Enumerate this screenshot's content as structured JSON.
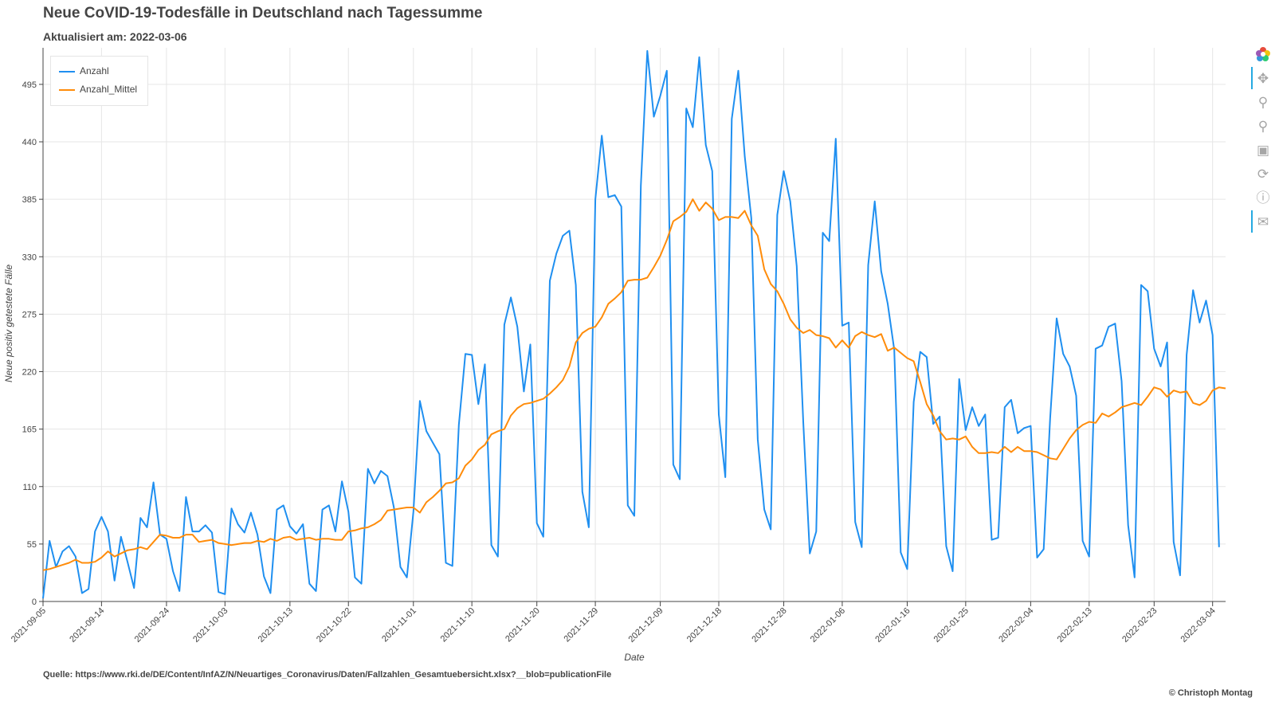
{
  "header": {
    "title": "Neue CoVID-19-Todesfälle in Deutschland nach Tagessumme",
    "subtitle": "Aktualisiert am: 2022-03-06"
  },
  "footer": {
    "source": "Quelle: https://www.rki.de/DE/Content/InfAZ/N/Neuartiges_Coronavirus/Daten/Fallzahlen_Gesamtuebersicht.xlsx?__blob=publicationFile",
    "copyright": "© Christoph Montag"
  },
  "toolbar": {
    "tools": [
      "bokeh-logo-icon",
      "pan-icon",
      "box-zoom-icon",
      "wheel-zoom-icon",
      "save-icon",
      "reset-icon",
      "help-icon",
      "hover-icon"
    ]
  },
  "colors": {
    "anzahl": "#1f8ff0",
    "mittel": "#ff8c0a",
    "grid": "#e6e6e6",
    "axis": "#444444"
  },
  "chart_data": {
    "type": "line",
    "xlabel": "Date",
    "ylabel": "Neue positiv getestete Fälle",
    "x_start": "2021-09-05",
    "x_end": "2022-03-05",
    "xlim": [
      "2021-09-05",
      "2022-03-06"
    ],
    "ylim": [
      0,
      530
    ],
    "yticks": [
      0,
      55,
      110,
      165,
      220,
      275,
      330,
      385,
      440,
      495
    ],
    "xticks": [
      "2021-09-05",
      "2021-09-14",
      "2021-09-24",
      "2021-10-03",
      "2021-10-13",
      "2021-10-22",
      "2021-11-01",
      "2021-11-10",
      "2021-11-20",
      "2021-11-29",
      "2021-12-09",
      "2021-12-18",
      "2021-12-28",
      "2022-01-06",
      "2022-01-16",
      "2022-01-25",
      "2022-02-04",
      "2022-02-13",
      "2022-02-23",
      "2022-03-04"
    ],
    "grid": true,
    "legend": "top-left",
    "series": [
      {
        "name": "Anzahl",
        "values": [
          3,
          58,
          33,
          48,
          53,
          43,
          8,
          12,
          67,
          81,
          67,
          20,
          62,
          38,
          13,
          80,
          71,
          114,
          64,
          60,
          29,
          10,
          100,
          67,
          67,
          73,
          66,
          9,
          7,
          89,
          74,
          66,
          85,
          64,
          24,
          8,
          88,
          92,
          72,
          65,
          74,
          17,
          10,
          88,
          92,
          67,
          115,
          86,
          23,
          17,
          127,
          113,
          125,
          120,
          90,
          33,
          23,
          86,
          192,
          163,
          152,
          141,
          37,
          34,
          169,
          237,
          236,
          189,
          227,
          54,
          43,
          265,
          291,
          263,
          201,
          246,
          75,
          62,
          307,
          333,
          350,
          355,
          303,
          105,
          71,
          385,
          446,
          387,
          389,
          378,
          92,
          82,
          398,
          527,
          464,
          484,
          508,
          131,
          117,
          472,
          454,
          521,
          437,
          412,
          179,
          119,
          462,
          508,
          426,
          367,
          155,
          88,
          69,
          370,
          412,
          383,
          321,
          172,
          46,
          67,
          353,
          345,
          443,
          264,
          267,
          76,
          52,
          322,
          383,
          316,
          285,
          241,
          47,
          31,
          191,
          239,
          234,
          170,
          177,
          53,
          29,
          213,
          164,
          186,
          168,
          179,
          59,
          61,
          186,
          193,
          161,
          166,
          168,
          42,
          50,
          175,
          271,
          237,
          225,
          197,
          58,
          43,
          242,
          245,
          263,
          266,
          211,
          73,
          23,
          303,
          297,
          242,
          225,
          248,
          57,
          25,
          236,
          298,
          267,
          288,
          255,
          52
        ]
      },
      {
        "name": "Anzahl_Mittel",
        "values": [
          30,
          31,
          33,
          35,
          37,
          40,
          37,
          37,
          38,
          42,
          48,
          43,
          46,
          49,
          50,
          52,
          50,
          57,
          64,
          63,
          61,
          61,
          64,
          64,
          57,
          58,
          59,
          56,
          55,
          54,
          55,
          56,
          56,
          58,
          57,
          60,
          58,
          61,
          62,
          59,
          60,
          61,
          59,
          60,
          60,
          59,
          59,
          67,
          68,
          70,
          71,
          74,
          78,
          87,
          88,
          89,
          90,
          90,
          85,
          95,
          100,
          106,
          113,
          114,
          118,
          130,
          136,
          145,
          150,
          160,
          163,
          165,
          178,
          185,
          189,
          190,
          192,
          194,
          199,
          205,
          212,
          225,
          248,
          257,
          261,
          263,
          272,
          285,
          290,
          296,
          307,
          308,
          308,
          310,
          320,
          331,
          346,
          364,
          368,
          373,
          385,
          374,
          382,
          376,
          365,
          368,
          368,
          367,
          374,
          360,
          350,
          318,
          304,
          297,
          285,
          270,
          262,
          257,
          260,
          255,
          254,
          252,
          243,
          250,
          243,
          254,
          258,
          255,
          253,
          256,
          240,
          243,
          238,
          233,
          230,
          210,
          189,
          178,
          163,
          155,
          156,
          155,
          158,
          148,
          142,
          142,
          143,
          142,
          148,
          143,
          148,
          144,
          144,
          143,
          140,
          137,
          136,
          146,
          156,
          164,
          169,
          172,
          171,
          180,
          177,
          181,
          186,
          188,
          190,
          188,
          196,
          205,
          203,
          196,
          202,
          200,
          201,
          190,
          188,
          192,
          202,
          205,
          204
        ]
      }
    ]
  }
}
